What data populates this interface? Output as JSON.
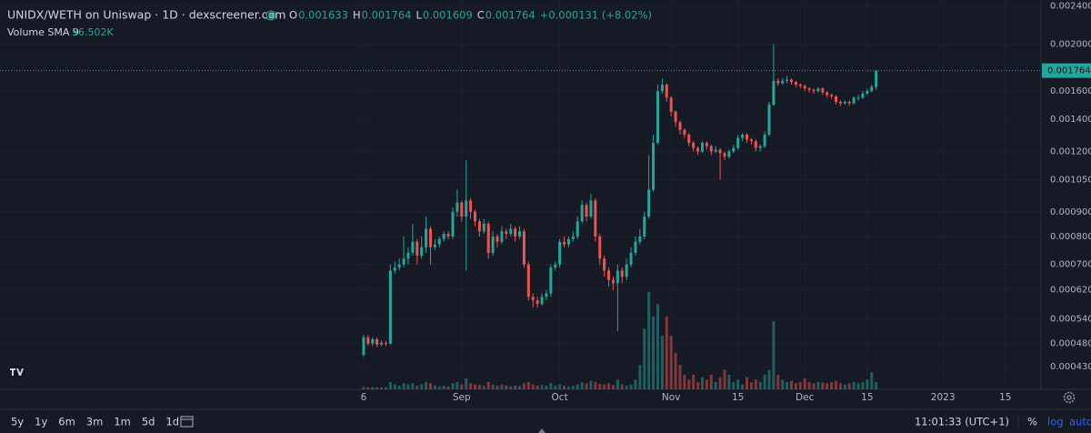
{
  "chart_data": {
    "type": "candlestick",
    "title": "UNIDX/WETH on Uniswap · 1D · dexscreener.com",
    "legend": [
      {
        "label": "O",
        "value": "0.001633"
      },
      {
        "label": "H",
        "value": "0.001764"
      },
      {
        "label": "L",
        "value": "0.001609"
      },
      {
        "label": "C",
        "value": "0.001764"
      }
    ],
    "change": "+0.000131 (+8.02%)",
    "volume_label": "Volume SMA 9",
    "volume_value": "56.502K",
    "log_scale": true,
    "up_color": "#26a69a",
    "down_color": "#ef5350",
    "xlim": [
      -81.6,
      152
    ],
    "xticks": [
      {
        "value": 0,
        "label": "6"
      },
      {
        "value": 22,
        "label": "Sep"
      },
      {
        "value": 44,
        "label": "Oct"
      },
      {
        "value": 69,
        "label": "Nov"
      },
      {
        "value": 84,
        "label": "15"
      },
      {
        "value": 99,
        "label": "Dec"
      },
      {
        "value": 113,
        "label": "15"
      },
      {
        "value": 130,
        "label": "2023"
      },
      {
        "value": 144,
        "label": "15"
      }
    ],
    "ylim": [
      0.000386,
      0.00247
    ],
    "yticks": [
      {
        "value": 0.0024,
        "label": "0.002400"
      },
      {
        "value": 0.002,
        "label": "0.002000"
      },
      {
        "value": 0.0016,
        "label": "0.001600"
      },
      {
        "value": 0.0014,
        "label": "0.001400"
      },
      {
        "value": 0.0012,
        "label": "0.001200"
      },
      {
        "value": 0.00105,
        "label": "0.001050"
      },
      {
        "value": 0.0009,
        "label": "0.000900"
      },
      {
        "value": 0.0008,
        "label": "0.000800"
      },
      {
        "value": 0.0007,
        "label": "0.000700"
      },
      {
        "value": 0.00062,
        "label": "0.000620"
      },
      {
        "value": 0.00054,
        "label": "0.000540"
      },
      {
        "value": 0.00048,
        "label": "0.000480"
      },
      {
        "value": 0.00043,
        "label": "0.000430"
      }
    ],
    "last_price": {
      "value": 0.001764,
      "label": "0.001764"
    },
    "volume_lim": [
      0,
      1600
    ],
    "open": [
      0.000455,
      0.000495,
      0.00048,
      0.00049,
      0.000478,
      0.000482,
      0.00048,
      0.00068,
      0.00069,
      0.0007,
      0.00072,
      0.00074,
      0.00078,
      0.00073,
      0.00076,
      0.00083,
      0.00076,
      0.00077,
      0.00079,
      0.00081,
      0.0008,
      0.0009,
      0.00094,
      0.00088,
      0.00095,
      0.0009,
      0.00086,
      0.00082,
      0.00085,
      0.00074,
      0.0008,
      0.00078,
      0.00082,
      0.00081,
      0.00083,
      0.0008,
      0.00082,
      0.0007,
      0.0006,
      0.00059,
      0.00058,
      0.0006,
      0.00061,
      0.00069,
      0.0007,
      0.00078,
      0.00077,
      0.00079,
      0.0008,
      0.00086,
      0.00093,
      0.00088,
      0.00095,
      0.0008,
      0.00072,
      0.00068,
      0.00065,
      0.00064,
      0.00068,
      0.00066,
      0.0007,
      0.00074,
      0.00078,
      0.0008,
      0.00088,
      0.001,
      0.00125,
      0.0016,
      0.00165,
      0.00155,
      0.00145,
      0.00138,
      0.00133,
      0.0013,
      0.00125,
      0.00122,
      0.0012,
      0.00125,
      0.00123,
      0.0012,
      0.00121,
      0.00119,
      0.00117,
      0.0012,
      0.00122,
      0.00128,
      0.0013,
      0.00127,
      0.00126,
      0.00122,
      0.00123,
      0.0013,
      0.0015,
      0.00168,
      0.00166,
      0.00168,
      0.00169,
      0.00167,
      0.00165,
      0.00164,
      0.00162,
      0.00161,
      0.0016,
      0.00162,
      0.00159,
      0.00157,
      0.00156,
      0.00152,
      0.00151,
      0.00152,
      0.00151,
      0.00155,
      0.00155,
      0.00158,
      0.0016,
      0.001633
    ],
    "high": [
      0.0005,
      0.0005,
      0.000495,
      0.000495,
      0.000488,
      0.000486,
      0.0007,
      0.00071,
      0.00072,
      0.0008,
      0.00076,
      0.00085,
      0.00079,
      0.0008,
      0.00088,
      0.00084,
      0.00079,
      0.0008,
      0.00082,
      0.00082,
      0.00092,
      0.001,
      0.00095,
      0.00115,
      0.00096,
      0.00091,
      0.00087,
      0.00087,
      0.00086,
      0.00082,
      0.00081,
      0.00084,
      0.00083,
      0.00085,
      0.00084,
      0.00084,
      0.00083,
      0.00071,
      0.00061,
      0.0006,
      0.00061,
      0.00062,
      0.0007,
      0.00071,
      0.00079,
      0.0008,
      0.0008,
      0.00082,
      0.00088,
      0.00095,
      0.00094,
      0.00098,
      0.00096,
      0.00081,
      0.00073,
      0.00069,
      0.00066,
      0.0007,
      0.00069,
      0.00072,
      0.00076,
      0.0008,
      0.00083,
      0.0009,
      0.00118,
      0.0013,
      0.00165,
      0.0017,
      0.00166,
      0.00156,
      0.00146,
      0.00139,
      0.00134,
      0.00131,
      0.00126,
      0.00123,
      0.00126,
      0.00126,
      0.00124,
      0.00123,
      0.00122,
      0.0012,
      0.00121,
      0.00124,
      0.0013,
      0.00131,
      0.00131,
      0.00128,
      0.00127,
      0.00124,
      0.00132,
      0.00152,
      0.002,
      0.0017,
      0.0017,
      0.00172,
      0.0017,
      0.00168,
      0.00166,
      0.00165,
      0.00163,
      0.00162,
      0.00163,
      0.00163,
      0.0016,
      0.00158,
      0.00157,
      0.00153,
      0.00153,
      0.00153,
      0.00156,
      0.00157,
      0.0016,
      0.00162,
      0.00165,
      0.001764
    ],
    "low": [
      0.00045,
      0.000475,
      0.000475,
      0.000472,
      0.000474,
      0.000474,
      0.000478,
      0.00067,
      0.00068,
      0.00069,
      0.0007,
      0.00073,
      0.0007,
      0.00072,
      0.00074,
      0.0007,
      0.00075,
      0.00076,
      0.00078,
      0.00079,
      0.00079,
      0.00088,
      0.00086,
      0.00068,
      0.00087,
      0.00084,
      0.0008,
      0.00081,
      0.00072,
      0.00073,
      0.00076,
      0.00077,
      0.00079,
      0.0008,
      0.00078,
      0.00079,
      0.00069,
      0.00059,
      0.00057,
      0.00057,
      0.000575,
      0.00059,
      0.0006,
      0.00068,
      0.00069,
      0.00076,
      0.00076,
      0.00078,
      0.00079,
      0.00085,
      0.00086,
      0.00087,
      0.00078,
      0.0007,
      0.00066,
      0.00063,
      0.00062,
      0.00051,
      0.00064,
      0.00065,
      0.00069,
      0.00073,
      0.00077,
      0.00079,
      0.00087,
      0.00099,
      0.00124,
      0.00158,
      0.00152,
      0.00142,
      0.00135,
      0.0013,
      0.00128,
      0.00123,
      0.0012,
      0.00118,
      0.00119,
      0.00121,
      0.00118,
      0.00119,
      0.00105,
      0.00115,
      0.00116,
      0.00119,
      0.00121,
      0.00126,
      0.00125,
      0.00124,
      0.0012,
      0.0012,
      0.00122,
      0.00129,
      0.00149,
      0.00164,
      0.00165,
      0.00166,
      0.00165,
      0.00163,
      0.00162,
      0.0016,
      0.00159,
      0.00158,
      0.00159,
      0.00157,
      0.00155,
      0.00154,
      0.0015,
      0.00149,
      0.0015,
      0.00149,
      0.0015,
      0.00153,
      0.00154,
      0.00157,
      0.00159,
      0.001609
    ],
    "close": [
      0.000495,
      0.00048,
      0.00049,
      0.000478,
      0.000482,
      0.00048,
      0.00068,
      0.00069,
      0.0007,
      0.00072,
      0.00074,
      0.00078,
      0.00073,
      0.00076,
      0.00083,
      0.00076,
      0.00077,
      0.00079,
      0.00081,
      0.0008,
      0.0009,
      0.00094,
      0.00088,
      0.00095,
      0.0009,
      0.00086,
      0.00082,
      0.00085,
      0.00074,
      0.0008,
      0.00078,
      0.00082,
      0.00081,
      0.00083,
      0.0008,
      0.00082,
      0.0007,
      0.0006,
      0.00059,
      0.00058,
      0.0006,
      0.00061,
      0.00069,
      0.0007,
      0.00078,
      0.00077,
      0.00079,
      0.0008,
      0.00086,
      0.00093,
      0.00088,
      0.00095,
      0.0008,
      0.00072,
      0.00068,
      0.00065,
      0.00064,
      0.00068,
      0.00066,
      0.0007,
      0.00074,
      0.00078,
      0.0008,
      0.00088,
      0.001,
      0.00125,
      0.0016,
      0.00165,
      0.00155,
      0.00145,
      0.00138,
      0.00133,
      0.0013,
      0.00125,
      0.00122,
      0.0012,
      0.00125,
      0.00123,
      0.0012,
      0.00121,
      0.00119,
      0.00117,
      0.0012,
      0.00122,
      0.00128,
      0.0013,
      0.00127,
      0.00126,
      0.00122,
      0.00123,
      0.0013,
      0.0015,
      0.00168,
      0.00166,
      0.00168,
      0.00169,
      0.00167,
      0.00165,
      0.00164,
      0.00162,
      0.00161,
      0.0016,
      0.00162,
      0.00159,
      0.00157,
      0.00156,
      0.00152,
      0.00151,
      0.00152,
      0.00151,
      0.00155,
      0.00155,
      0.00158,
      0.0016,
      0.001633,
      0.001764
    ],
    "volume": [
      10,
      8,
      9,
      8,
      8,
      9,
      30,
      20,
      15,
      25,
      20,
      25,
      15,
      20,
      30,
      25,
      15,
      12,
      15,
      12,
      25,
      30,
      20,
      45,
      25,
      20,
      18,
      15,
      30,
      20,
      15,
      20,
      15,
      12,
      15,
      14,
      25,
      30,
      20,
      15,
      18,
      15,
      25,
      14,
      20,
      15,
      12,
      14,
      20,
      30,
      25,
      35,
      30,
      22,
      20,
      25,
      18,
      40,
      20,
      15,
      20,
      40,
      100,
      250,
      400,
      300,
      350,
      220,
      300,
      220,
      150,
      100,
      60,
      40,
      60,
      30,
      50,
      40,
      60,
      30,
      50,
      80,
      60,
      30,
      40,
      20,
      50,
      30,
      40,
      30,
      60,
      80,
      280,
      60,
      40,
      30,
      35,
      25,
      30,
      45,
      30,
      25,
      30,
      28,
      25,
      30,
      35,
      25,
      20,
      25,
      30,
      25,
      30,
      40,
      70,
      30
    ],
    "ranges": [
      "5y",
      "1y",
      "6m",
      "3m",
      "1m",
      "5d",
      "1d"
    ],
    "clock": "11:01:33 (UTC+1)",
    "scale_buttons": [
      "%",
      "log",
      "auto"
    ]
  }
}
